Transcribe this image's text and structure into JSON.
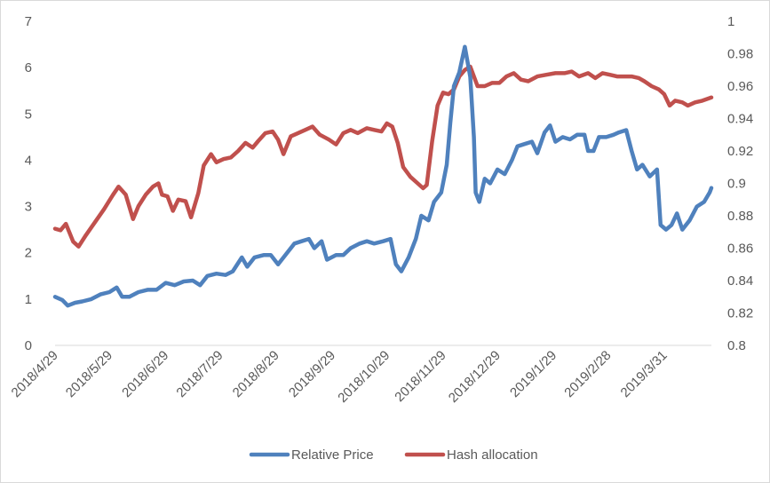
{
  "chart_data": {
    "type": "line",
    "title": "",
    "xlabel": "",
    "ylabel": "",
    "x_ticks": [
      "2018/4/29",
      "2018/5/29",
      "2018/6/29",
      "2018/7/29",
      "2018/8/29",
      "2018/9/29",
      "2018/10/29",
      "2018/11/29",
      "2018/12/29",
      "2019/1/29",
      "2019/2/28",
      "2019/3/31"
    ],
    "y_left": {
      "min": 0,
      "max": 7,
      "ticks": [
        "0",
        "1",
        "2",
        "3",
        "4",
        "5",
        "6",
        "7"
      ]
    },
    "y_right": {
      "min": 0.8,
      "max": 1.0,
      "ticks": [
        "0.8",
        "0.82",
        "0.84",
        "0.86",
        "0.88",
        "0.9",
        "0.92",
        "0.94",
        "0.96",
        "0.98",
        "1"
      ]
    },
    "grid": false,
    "legend_position": "bottom",
    "series": [
      {
        "name": "Relative Price",
        "axis": "left",
        "color": "#4f81bd",
        "points": [
          [
            "2018-04-29",
            1.05
          ],
          [
            "2018-05-03",
            0.98
          ],
          [
            "2018-05-06",
            0.86
          ],
          [
            "2018-05-10",
            0.92
          ],
          [
            "2018-05-14",
            0.95
          ],
          [
            "2018-05-19",
            1.0
          ],
          [
            "2018-05-24",
            1.1
          ],
          [
            "2018-05-29",
            1.15
          ],
          [
            "2018-06-02",
            1.25
          ],
          [
            "2018-06-05",
            1.05
          ],
          [
            "2018-06-09",
            1.05
          ],
          [
            "2018-06-14",
            1.15
          ],
          [
            "2018-06-19",
            1.2
          ],
          [
            "2018-06-24",
            1.2
          ],
          [
            "2018-06-29",
            1.35
          ],
          [
            "2018-07-04",
            1.3
          ],
          [
            "2018-07-09",
            1.38
          ],
          [
            "2018-07-14",
            1.4
          ],
          [
            "2018-07-18",
            1.3
          ],
          [
            "2018-07-22",
            1.5
          ],
          [
            "2018-07-27",
            1.55
          ],
          [
            "2018-08-01",
            1.52
          ],
          [
            "2018-08-05",
            1.6
          ],
          [
            "2018-08-10",
            1.9
          ],
          [
            "2018-08-13",
            1.7
          ],
          [
            "2018-08-17",
            1.9
          ],
          [
            "2018-08-22",
            1.95
          ],
          [
            "2018-08-26",
            1.95
          ],
          [
            "2018-08-30",
            1.75
          ],
          [
            "2018-09-04",
            2.0
          ],
          [
            "2018-09-08",
            2.2
          ],
          [
            "2018-09-12",
            2.25
          ],
          [
            "2018-09-16",
            2.3
          ],
          [
            "2018-09-19",
            2.1
          ],
          [
            "2018-09-23",
            2.25
          ],
          [
            "2018-09-26",
            1.85
          ],
          [
            "2018-10-01",
            1.95
          ],
          [
            "2018-10-05",
            1.95
          ],
          [
            "2018-10-09",
            2.1
          ],
          [
            "2018-10-14",
            2.2
          ],
          [
            "2018-10-18",
            2.25
          ],
          [
            "2018-10-22",
            2.2
          ],
          [
            "2018-10-27",
            2.25
          ],
          [
            "2018-10-31",
            2.3
          ],
          [
            "2018-11-03",
            1.75
          ],
          [
            "2018-11-06",
            1.6
          ],
          [
            "2018-11-10",
            1.9
          ],
          [
            "2018-11-14",
            2.3
          ],
          [
            "2018-11-17",
            2.8
          ],
          [
            "2018-11-21",
            2.7
          ],
          [
            "2018-11-24",
            3.1
          ],
          [
            "2018-11-28",
            3.3
          ],
          [
            "2018-12-01",
            3.9
          ],
          [
            "2018-12-03",
            4.8
          ],
          [
            "2018-12-05",
            5.6
          ],
          [
            "2018-12-08",
            5.9
          ],
          [
            "2018-12-11",
            6.45
          ],
          [
            "2018-12-14",
            5.8
          ],
          [
            "2018-12-16",
            4.5
          ],
          [
            "2018-12-17",
            3.3
          ],
          [
            "2018-12-19",
            3.1
          ],
          [
            "2018-12-22",
            3.6
          ],
          [
            "2018-12-25",
            3.5
          ],
          [
            "2018-12-29",
            3.8
          ],
          [
            "2019-01-02",
            3.7
          ],
          [
            "2019-01-06",
            4.0
          ],
          [
            "2019-01-09",
            4.3
          ],
          [
            "2019-01-13",
            4.35
          ],
          [
            "2019-01-17",
            4.4
          ],
          [
            "2019-01-20",
            4.15
          ],
          [
            "2019-01-24",
            4.6
          ],
          [
            "2019-01-27",
            4.75
          ],
          [
            "2019-01-30",
            4.4
          ],
          [
            "2019-02-03",
            4.5
          ],
          [
            "2019-02-07",
            4.45
          ],
          [
            "2019-02-11",
            4.55
          ],
          [
            "2019-02-15",
            4.55
          ],
          [
            "2019-02-17",
            4.2
          ],
          [
            "2019-02-20",
            4.2
          ],
          [
            "2019-02-23",
            4.5
          ],
          [
            "2019-02-27",
            4.5
          ],
          [
            "2019-03-03",
            4.55
          ],
          [
            "2019-03-06",
            4.6
          ],
          [
            "2019-03-10",
            4.65
          ],
          [
            "2019-03-13",
            4.2
          ],
          [
            "2019-03-16",
            3.8
          ],
          [
            "2019-03-19",
            3.9
          ],
          [
            "2019-03-23",
            3.65
          ],
          [
            "2019-03-27",
            3.8
          ],
          [
            "2019-03-29",
            2.6
          ],
          [
            "2019-04-01",
            2.5
          ],
          [
            "2019-04-04",
            2.6
          ],
          [
            "2019-04-07",
            2.85
          ],
          [
            "2019-04-10",
            2.5
          ],
          [
            "2019-04-14",
            2.7
          ],
          [
            "2019-04-18",
            3.0
          ],
          [
            "2019-04-22",
            3.1
          ],
          [
            "2019-04-25",
            3.3
          ],
          [
            "2019-04-26",
            3.4
          ]
        ]
      },
      {
        "name": "Hash allocation",
        "axis": "right",
        "color": "#c0504d",
        "points": [
          [
            "2018-04-29",
            0.872
          ],
          [
            "2018-05-02",
            0.871
          ],
          [
            "2018-05-05",
            0.875
          ],
          [
            "2018-05-09",
            0.864
          ],
          [
            "2018-05-12",
            0.861
          ],
          [
            "2018-05-16",
            0.868
          ],
          [
            "2018-05-21",
            0.876
          ],
          [
            "2018-05-26",
            0.884
          ],
          [
            "2018-05-31",
            0.893
          ],
          [
            "2018-06-03",
            0.898
          ],
          [
            "2018-06-07",
            0.893
          ],
          [
            "2018-06-11",
            0.878
          ],
          [
            "2018-06-14",
            0.886
          ],
          [
            "2018-06-18",
            0.893
          ],
          [
            "2018-06-22",
            0.898
          ],
          [
            "2018-06-25",
            0.9
          ],
          [
            "2018-06-27",
            0.893
          ],
          [
            "2018-06-30",
            0.892
          ],
          [
            "2018-07-03",
            0.883
          ],
          [
            "2018-07-06",
            0.89
          ],
          [
            "2018-07-10",
            0.889
          ],
          [
            "2018-07-13",
            0.879
          ],
          [
            "2018-07-17",
            0.894
          ],
          [
            "2018-07-20",
            0.911
          ],
          [
            "2018-07-24",
            0.918
          ],
          [
            "2018-07-27",
            0.913
          ],
          [
            "2018-07-31",
            0.915
          ],
          [
            "2018-08-04",
            0.916
          ],
          [
            "2018-08-08",
            0.92
          ],
          [
            "2018-08-12",
            0.925
          ],
          [
            "2018-08-16",
            0.922
          ],
          [
            "2018-08-19",
            0.926
          ],
          [
            "2018-08-23",
            0.931
          ],
          [
            "2018-08-27",
            0.932
          ],
          [
            "2018-08-30",
            0.927
          ],
          [
            "2018-09-02",
            0.918
          ],
          [
            "2018-09-06",
            0.929
          ],
          [
            "2018-09-10",
            0.931
          ],
          [
            "2018-09-14",
            0.933
          ],
          [
            "2018-09-18",
            0.935
          ],
          [
            "2018-09-22",
            0.93
          ],
          [
            "2018-09-27",
            0.927
          ],
          [
            "2018-10-01",
            0.924
          ],
          [
            "2018-10-05",
            0.931
          ],
          [
            "2018-10-09",
            0.933
          ],
          [
            "2018-10-13",
            0.931
          ],
          [
            "2018-10-18",
            0.934
          ],
          [
            "2018-10-22",
            0.933
          ],
          [
            "2018-10-26",
            0.932
          ],
          [
            "2018-10-29",
            0.937
          ],
          [
            "2018-11-01",
            0.935
          ],
          [
            "2018-11-04",
            0.925
          ],
          [
            "2018-11-07",
            0.91
          ],
          [
            "2018-11-11",
            0.904
          ],
          [
            "2018-11-15",
            0.9
          ],
          [
            "2018-11-18",
            0.897
          ],
          [
            "2018-11-20",
            0.899
          ],
          [
            "2018-11-23",
            0.926
          ],
          [
            "2018-11-26",
            0.948
          ],
          [
            "2018-11-29",
            0.956
          ],
          [
            "2018-12-02",
            0.955
          ],
          [
            "2018-12-05",
            0.958
          ],
          [
            "2018-12-08",
            0.966
          ],
          [
            "2018-12-11",
            0.97
          ],
          [
            "2018-12-14",
            0.972
          ],
          [
            "2018-12-18",
            0.96
          ],
          [
            "2018-12-22",
            0.96
          ],
          [
            "2018-12-26",
            0.962
          ],
          [
            "2018-12-30",
            0.962
          ],
          [
            "2019-01-03",
            0.966
          ],
          [
            "2019-01-07",
            0.968
          ],
          [
            "2019-01-11",
            0.964
          ],
          [
            "2019-01-15",
            0.963
          ],
          [
            "2019-01-20",
            0.966
          ],
          [
            "2019-01-25",
            0.967
          ],
          [
            "2019-01-30",
            0.968
          ],
          [
            "2019-02-04",
            0.968
          ],
          [
            "2019-02-08",
            0.969
          ],
          [
            "2019-02-12",
            0.966
          ],
          [
            "2019-02-17",
            0.968
          ],
          [
            "2019-02-21",
            0.965
          ],
          [
            "2019-02-25",
            0.968
          ],
          [
            "2019-03-01",
            0.967
          ],
          [
            "2019-03-05",
            0.966
          ],
          [
            "2019-03-09",
            0.966
          ],
          [
            "2019-03-13",
            0.966
          ],
          [
            "2019-03-17",
            0.965
          ],
          [
            "2019-03-20",
            0.963
          ],
          [
            "2019-03-24",
            0.96
          ],
          [
            "2019-03-28",
            0.958
          ],
          [
            "2019-03-31",
            0.955
          ],
          [
            "2019-04-03",
            0.948
          ],
          [
            "2019-04-06",
            0.951
          ],
          [
            "2019-04-10",
            0.95
          ],
          [
            "2019-04-13",
            0.948
          ],
          [
            "2019-04-17",
            0.95
          ],
          [
            "2019-04-21",
            0.951
          ],
          [
            "2019-04-26",
            0.953
          ]
        ]
      }
    ]
  }
}
